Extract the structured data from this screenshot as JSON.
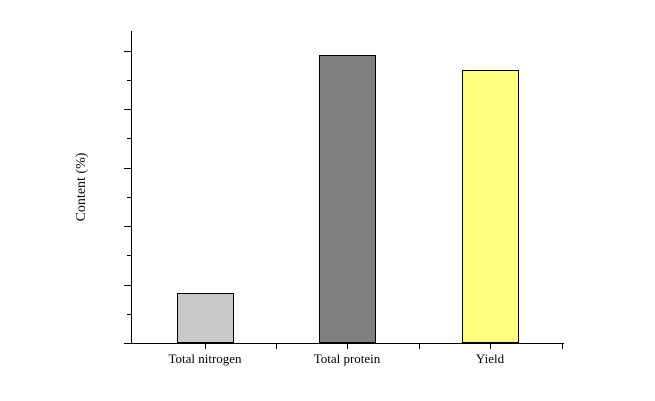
{
  "chart_data": {
    "type": "bar",
    "title": "",
    "categories": [
      "Total nitrogen",
      "Total protein",
      "Yield"
    ],
    "values": [
      17.1,
      98.5,
      93.2
    ],
    "bar_colors": [
      "#c9c9c9",
      "#808080",
      "#ffff80"
    ],
    "bar_border_color": "#000000",
    "xlabel": "",
    "ylabel": "Content (%)",
    "ylim": [
      0,
      107
    ],
    "yticks_major": [
      0,
      20,
      40,
      60,
      80,
      100
    ],
    "yticks_minor": [
      10,
      30,
      50,
      70,
      90
    ],
    "grid": false,
    "legend": false,
    "background": "#ffffff"
  }
}
